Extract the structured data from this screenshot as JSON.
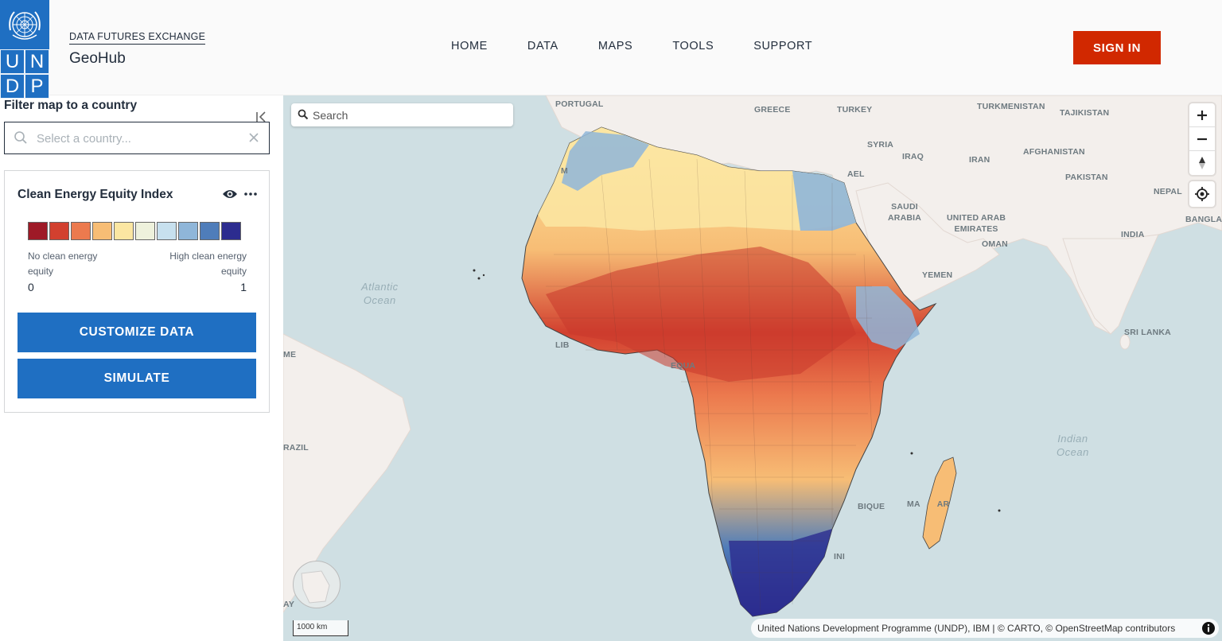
{
  "header": {
    "logo_letters": [
      "U",
      "N",
      "D",
      "P"
    ],
    "brand_small": "DATA FUTURES EXCHANGE",
    "brand_title": "GeoHub",
    "nav": [
      "HOME",
      "DATA",
      "MAPS",
      "TOOLS",
      "SUPPORT"
    ],
    "sign_in": "SIGN IN",
    "accent": "#d12800",
    "logo_color": "#1f6fc2"
  },
  "sidebar": {
    "filter_label": "Filter map to a country",
    "country_placeholder": "Select a country...",
    "layer": {
      "title": "Clean Energy Equity Index",
      "legend_colors": [
        "#9e1a27",
        "#d2402f",
        "#ec7a4e",
        "#f7bd75",
        "#fbe6a2",
        "#eef1dc",
        "#c7e0ee",
        "#8fb6d9",
        "#4f7dba",
        "#2c2c8f"
      ],
      "legend_low_label": "No clean energy equity",
      "legend_high_label": "High clean energy equity",
      "legend_min": "0",
      "legend_max": "1"
    },
    "buttons": {
      "customize": "CUSTOMIZE DATA",
      "simulate": "SIMULATE"
    }
  },
  "map": {
    "search_placeholder": "Search",
    "scale": "1000 km",
    "attribution": "United Nations Development Programme (UNDP), IBM | © CARTO, © OpenStreetMap contributors",
    "places": {
      "portugal": "PORTUGAL",
      "greece": "GREECE",
      "turkey": "TURKEY",
      "turkmenistan": "TURKMENISTAN",
      "tajikistan": "TAJIKISTAN",
      "syria": "SYRIA",
      "iraq": "IRAQ",
      "iran": "IRAN",
      "afghanistan": "AFGHANISTAN",
      "pakistan": "PAKISTAN",
      "nepal": "NEPAL",
      "bangladesh": "BANGLAD",
      "israel": "AEL",
      "saudi": "SAUDI\nARABIA",
      "uae": "UNITED ARAB\nEMIRATES",
      "oman": "OMAN",
      "india": "INDIA",
      "yemen": "YEMEN",
      "sri_lanka": "SRI LANKA",
      "brazil": "RAZIL",
      "equator": "EQUA",
      "mozambique": "BIQUE",
      "madagascar": "MA       AR",
      "me": "ME",
      "ay": "AY",
      "li": "LIB",
      "ma": "M",
      "ini": "INI"
    },
    "oceans": {
      "atlantic": "Atlantic\nOcean",
      "indian": "Indian\nOcean"
    }
  }
}
